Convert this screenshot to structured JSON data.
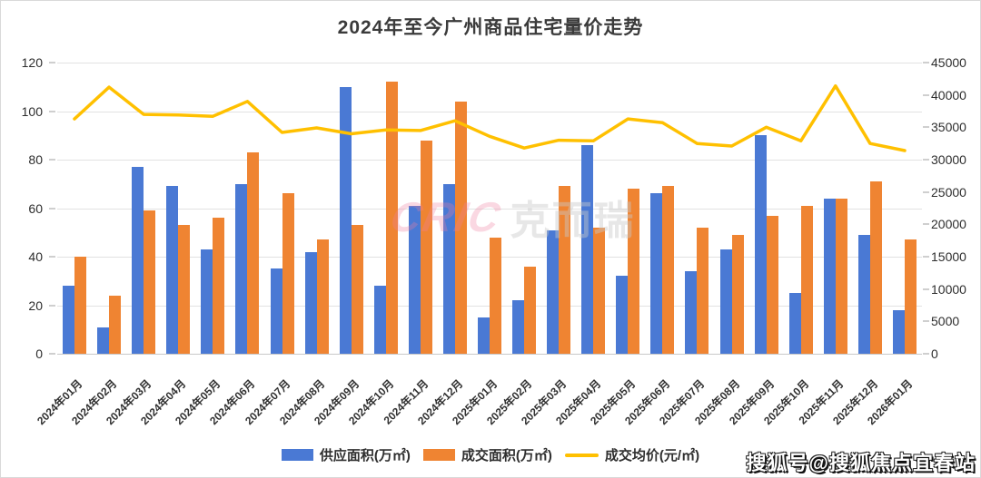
{
  "page": {
    "title": "2024年至今广州商品住宅量价走势",
    "watermark_center": {
      "cric": "CRIC",
      "brand": "克而瑞"
    },
    "watermark_bottom_right": "搜狐号@搜狐焦点宜春站"
  },
  "colors": {
    "supply_bar": "#4a79d4",
    "transaction_bar": "#ef8432",
    "price_line": "#ffc000",
    "grid": "#e2e2e2",
    "axis_text": "#2e2e2e"
  },
  "chart_data": {
    "type": "bar+line combo",
    "title": "2024年至今广州商品住宅量价走势",
    "grid": true,
    "legend_position": "bottom",
    "categories": [
      "2024年01月",
      "2024年02月",
      "2024年03月",
      "2024年04月",
      "2024年05月",
      "2024年06月",
      "2024年07月",
      "2024年08月",
      "2024年09月",
      "2024年10月",
      "2024年11月",
      "2024年12月",
      "2025年01月",
      "2025年02月",
      "2025年03月",
      "2025年04月",
      "2025年05月",
      "2025年06月",
      "2025年07月",
      "2025年08月",
      "2025年09月",
      "2025年10月",
      "2025年11月",
      "2025年12月",
      "2026年01月"
    ],
    "series": [
      {
        "name": "供应面积(万㎡)",
        "type": "bar",
        "axis": "left",
        "values": [
          28,
          11,
          77,
          69,
          43,
          70,
          35,
          42,
          110,
          28,
          61,
          70,
          15,
          22,
          51,
          86,
          32,
          66,
          34,
          43,
          90,
          25,
          64,
          49,
          18
        ]
      },
      {
        "name": "成交面积(万㎡)",
        "type": "bar",
        "axis": "left",
        "values": [
          40,
          24,
          59,
          53,
          56,
          83,
          66,
          47,
          53,
          112,
          88,
          104,
          48,
          36,
          69,
          52,
          68,
          69,
          52,
          49,
          57,
          61,
          64,
          71,
          47
        ]
      },
      {
        "name": "成交均价(元/㎡)",
        "type": "line",
        "axis": "right",
        "values": [
          36300,
          41200,
          37000,
          36900,
          36700,
          39000,
          34200,
          34900,
          34000,
          34600,
          34500,
          36000,
          33600,
          31800,
          33000,
          32900,
          36300,
          35700,
          32500,
          32100,
          35000,
          32900,
          41400,
          32500,
          31400
        ]
      }
    ],
    "left_axis": {
      "min": 0,
      "max": 120,
      "step": 20,
      "ticks": [
        0,
        20,
        40,
        60,
        80,
        100,
        120
      ]
    },
    "right_axis": {
      "min": 0,
      "max": 45000,
      "step": 5000,
      "ticks": [
        0,
        5000,
        10000,
        15000,
        20000,
        25000,
        30000,
        35000,
        40000,
        45000
      ]
    }
  }
}
